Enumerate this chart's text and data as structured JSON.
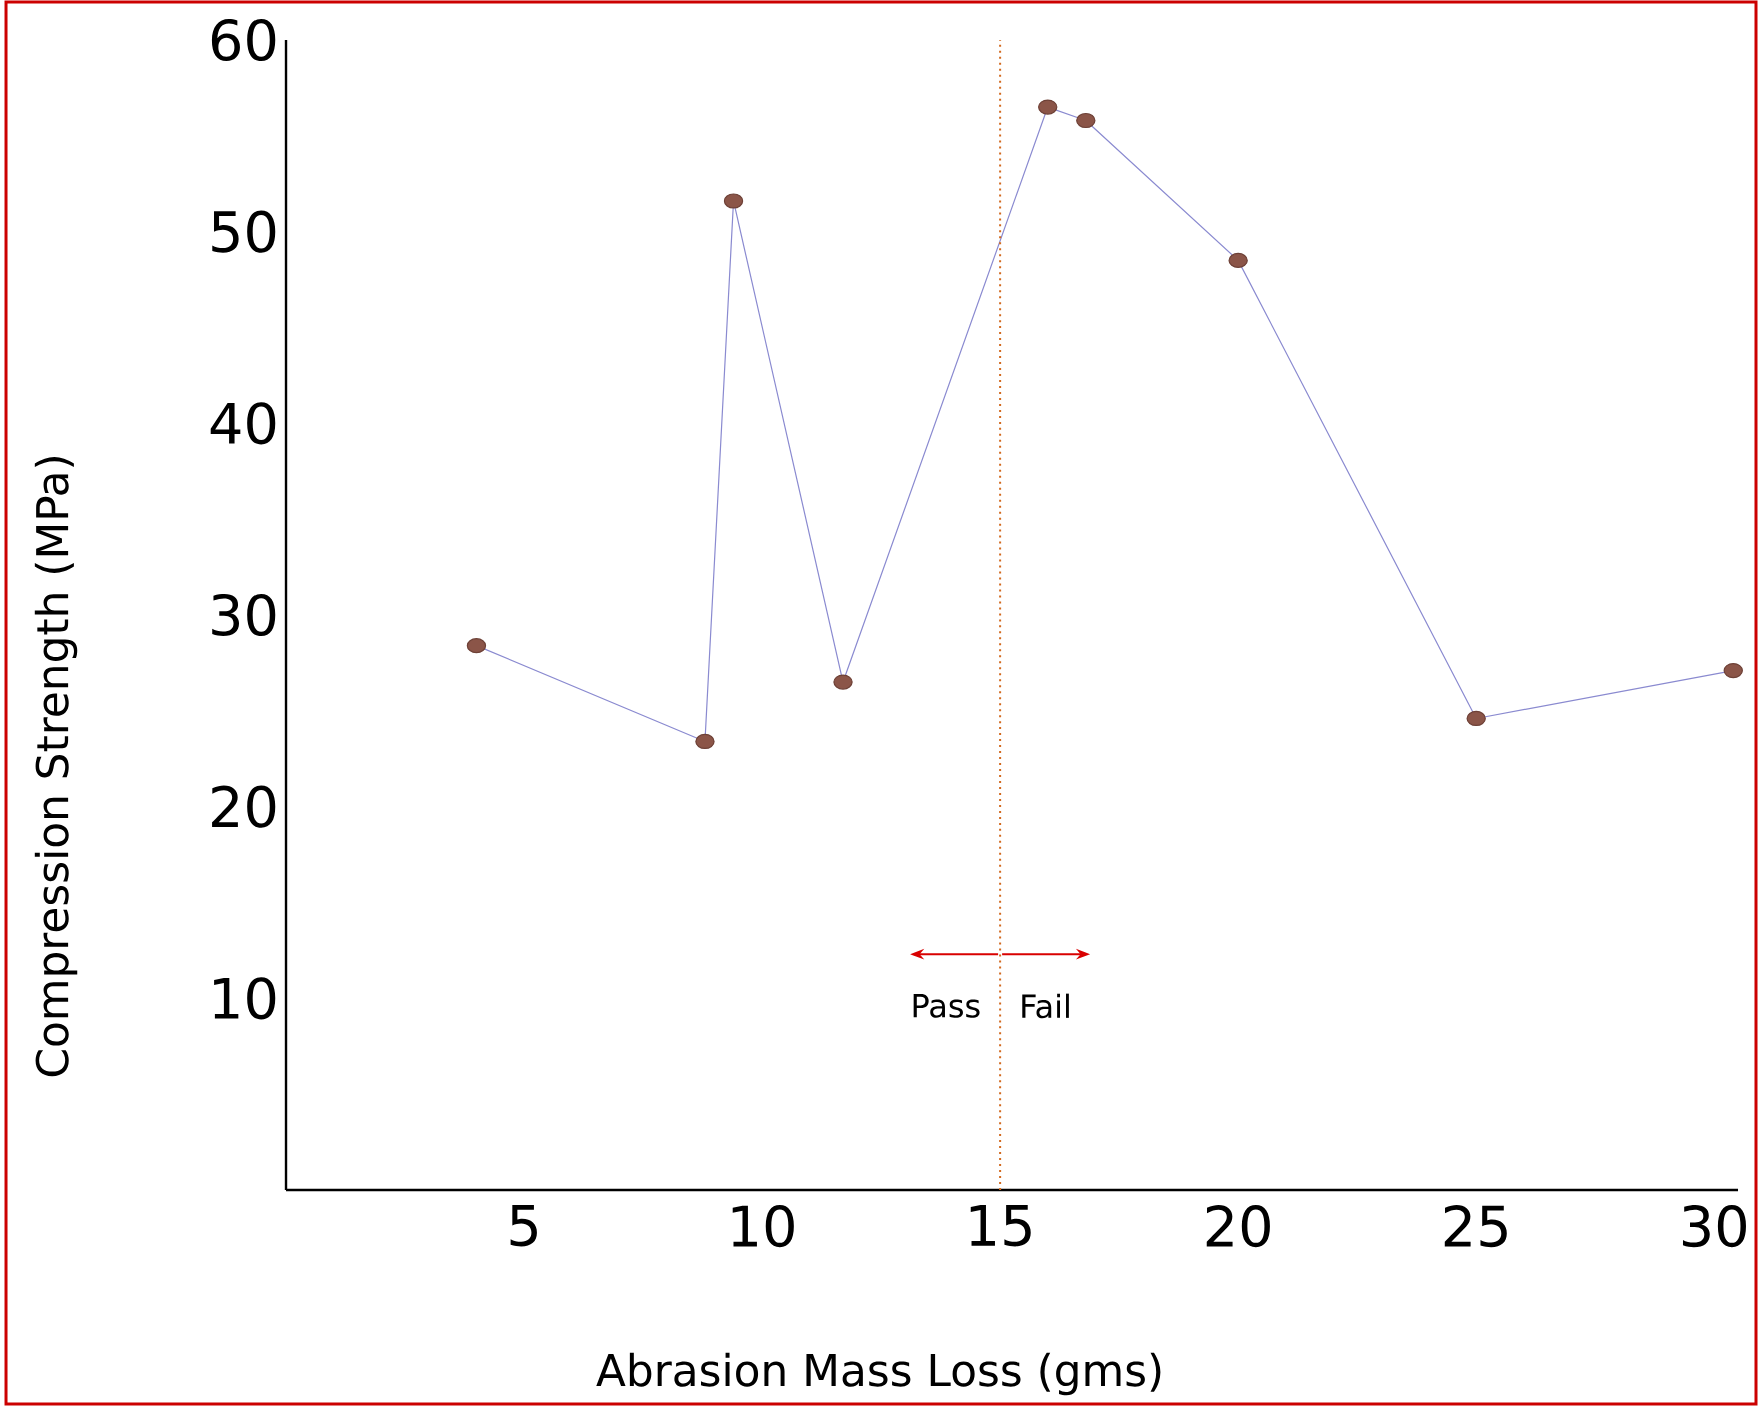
{
  "chart_data": {
    "type": "line",
    "xlabel": "Abrasion Mass Loss (gms)",
    "ylabel": "Compression Strength (MPa)",
    "x": [
      4,
      8.8,
      9.4,
      11.7,
      16,
      16.8,
      20,
      25,
      30.4
    ],
    "series": [
      {
        "color": "#8a8ad0",
        "values": [
          28.4,
          23.4,
          51.6,
          26.5,
          56.5,
          55.8,
          48.5,
          24.6,
          27.1
        ]
      }
    ],
    "marker": "circle",
    "line_style": "solid",
    "xlim": [
      0,
      30.5
    ],
    "ylim": [
      0,
      60
    ],
    "xticks": [
      5,
      10,
      15,
      20,
      25,
      30
    ],
    "yticks": [
      10,
      20,
      30,
      40,
      50,
      60
    ],
    "ref_lines": [
      {
        "axis": "x",
        "value": 15,
        "color": "#d2691e",
        "line_style": "dotted"
      }
    ],
    "annotations": [
      "Pass",
      "Fail"
    ]
  }
}
